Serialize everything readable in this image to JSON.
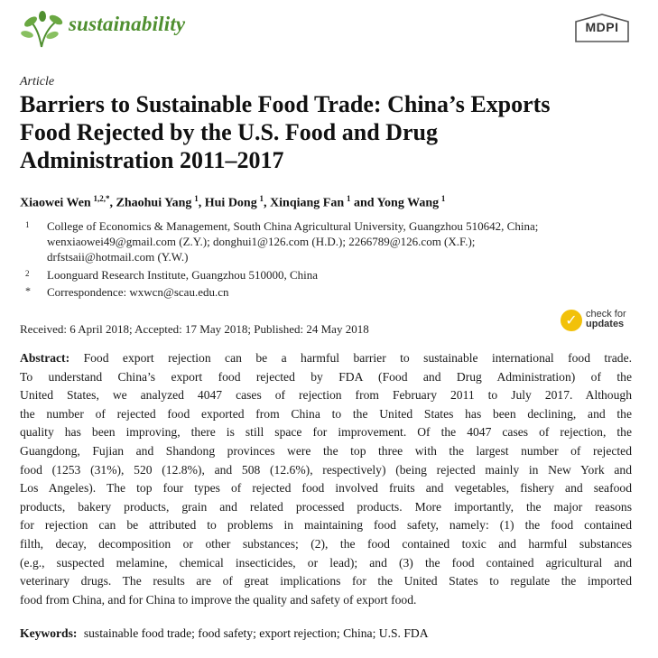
{
  "header": {
    "journal": "sustainability",
    "publisher": "MDPI"
  },
  "article": {
    "type": "Article",
    "title_lines": [
      "Barriers to Sustainable Food Trade: China’s Exports",
      "Food Rejected by the U.S. Food and Drug",
      "Administration 2011–2017"
    ],
    "authors": [
      {
        "name": "Xiaowei Wen",
        "sup": "1,2,*"
      },
      {
        "name": "Zhaohui Yang",
        "sup": "1"
      },
      {
        "name": "Hui Dong",
        "sup": "1"
      },
      {
        "name": "Xinqiang Fan",
        "sup": "1"
      },
      {
        "name": "Yong Wang",
        "sup": "1"
      }
    ],
    "author_separators": [
      ", ",
      ", ",
      ", ",
      " and "
    ],
    "affiliations": [
      {
        "mark": "1",
        "lines": [
          "College of Economics & Management, South China Agricultural University, Guangzhou 510642, China;",
          "wenxiaowei49@gmail.com (Z.Y.); donghui1@126.com (H.D.); 2266789@126.com (X.F.);",
          "drfstsaii@hotmail.com (Y.W.)"
        ]
      },
      {
        "mark": "2",
        "lines": [
          "Loonguard Research Institute, Guangzhou 510000, China"
        ]
      },
      {
        "mark": "*",
        "lines": [
          "Correspondence: wxwcn@scau.edu.cn"
        ]
      }
    ],
    "dates": "Received: 6 April 2018; Accepted: 17 May 2018; Published: 24 May 2018",
    "check_updates": {
      "line1": "check for",
      "line2": "updates"
    },
    "abstract_label": "Abstract:",
    "abstract_lines": [
      "Food export rejection can be a harmful barrier to sustainable international food trade.",
      "To understand China’s export food rejected by FDA (Food and Drug Administration) of the",
      "United States, we analyzed 4047 cases of rejection from February 2011 to July 2017.  Although",
      "the number of rejected food exported from China to the United States has been declining, and the",
      "quality has been improving, there is still space for improvement. Of the 4047 cases of rejection, the",
      "Guangdong, Fujian and Shandong provinces were the top three with the largest number of rejected",
      "food (1253 (31%), 520 (12.8%), and 508 (12.6%), respectively) (being rejected mainly in New York and",
      "Los Angeles). The top four types of rejected food involved fruits and vegetables, fishery and seafood",
      "products, bakery products, grain and related processed products. More importantly, the major reasons",
      "for rejection can be attributed to problems in maintaining food safety, namely: (1) the food contained",
      "filth, decay, decomposition or other substances; (2), the food contained toxic and harmful substances",
      "(e.g., suspected melamine, chemical insecticides, or lead); and (3) the food contained agricultural and",
      "veterinary drugs. The results are of great implications for the United States to regulate the imported",
      "food from China, and for China to improve the quality and safety of export food."
    ],
    "keywords_label": "Keywords:",
    "keywords": "sustainable food trade; food safety; export rejection; China; U.S. FDA"
  }
}
